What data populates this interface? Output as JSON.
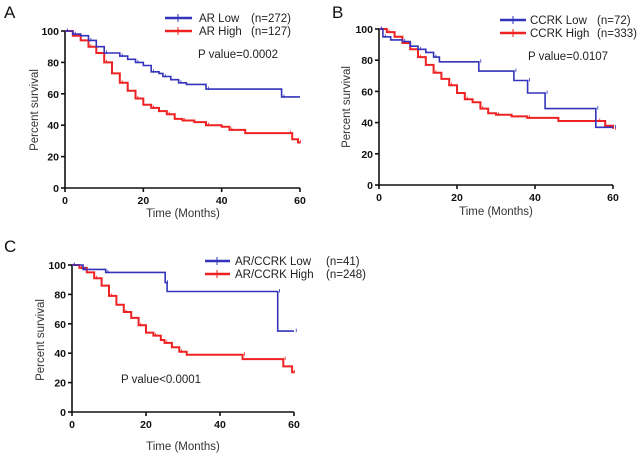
{
  "colors": {
    "low": "#3333bb",
    "high": "#ee2222",
    "axis": "#111111"
  },
  "chart_data": [
    {
      "type": "line",
      "panel": "A",
      "subtype": "kaplan-meier",
      "xlabel": "Time (Months)",
      "ylabel": "Percent  survival",
      "xlim": [
        0,
        60
      ],
      "ylim": [
        0,
        100
      ],
      "xticks": [
        0,
        20,
        40,
        60
      ],
      "yticks": [
        0,
        20,
        40,
        60,
        80,
        100
      ],
      "legend_position": "top-right",
      "annotation": "P value=0.0002",
      "series": [
        {
          "name": "AR Low",
          "n_label": "(n=272)",
          "color": "low",
          "steps": [
            [
              0,
              100
            ],
            [
              2,
              98
            ],
            [
              4,
              97
            ],
            [
              6,
              94
            ],
            [
              8,
              90
            ],
            [
              10,
              86
            ],
            [
              12,
              86
            ],
            [
              14,
              84
            ],
            [
              16,
              82
            ],
            [
              18,
              80
            ],
            [
              20,
              78
            ],
            [
              22,
              74
            ],
            [
              24,
              73
            ],
            [
              25,
              71
            ],
            [
              27,
              69
            ],
            [
              29,
              67
            ],
            [
              31,
              66
            ],
            [
              36,
              63
            ],
            [
              55,
              63
            ],
            [
              55.3,
              58
            ],
            [
              60,
              58
            ]
          ]
        },
        {
          "name": "AR High",
          "n_label": "(n=127)",
          "color": "high",
          "steps": [
            [
              0,
              100
            ],
            [
              2,
              97
            ],
            [
              4,
              94
            ],
            [
              6,
              90
            ],
            [
              8,
              86
            ],
            [
              10,
              80
            ],
            [
              12,
              73
            ],
            [
              14,
              67
            ],
            [
              16,
              62
            ],
            [
              18,
              57
            ],
            [
              20,
              53
            ],
            [
              22,
              51
            ],
            [
              24,
              49
            ],
            [
              26,
              47
            ],
            [
              28,
              44
            ],
            [
              30,
              43
            ],
            [
              33,
              42
            ],
            [
              36,
              40
            ],
            [
              40,
              39
            ],
            [
              42,
              37
            ],
            [
              46,
              35
            ],
            [
              57,
              35
            ],
            [
              58,
              31
            ],
            [
              59.5,
              29
            ],
            [
              60,
              29
            ]
          ]
        }
      ]
    },
    {
      "type": "line",
      "panel": "B",
      "subtype": "kaplan-meier",
      "xlabel": "Time (Months)",
      "ylabel": "Percent  survival",
      "xlim": [
        0,
        60
      ],
      "ylim": [
        0,
        100
      ],
      "xticks": [
        0,
        20,
        40,
        60
      ],
      "yticks": [
        0,
        20,
        40,
        60,
        80,
        100
      ],
      "legend_position": "top-right",
      "annotation": "P value=0.0107",
      "series": [
        {
          "name": "CCRK Low",
          "n_label": "(n=72)",
          "color": "low",
          "steps": [
            [
              0,
              100
            ],
            [
              1,
              95
            ],
            [
              3,
              93
            ],
            [
              6,
              92
            ],
            [
              8,
              89
            ],
            [
              10,
              87
            ],
            [
              12,
              85
            ],
            [
              14,
              82
            ],
            [
              15.5,
              79
            ],
            [
              25.5,
              79
            ],
            [
              25.6,
              73
            ],
            [
              34.5,
              73
            ],
            [
              34.6,
              67
            ],
            [
              38,
              67
            ],
            [
              38.1,
              59
            ],
            [
              42.5,
              59
            ],
            [
              42.6,
              49
            ],
            [
              55.5,
              49
            ],
            [
              55.6,
              37
            ],
            [
              60,
              37
            ]
          ]
        },
        {
          "name": "CCRK High",
          "n_label": "(n=333)",
          "color": "high",
          "steps": [
            [
              0,
              100
            ],
            [
              2,
              98
            ],
            [
              4,
              95
            ],
            [
              6,
              91
            ],
            [
              8,
              87
            ],
            [
              10,
              82
            ],
            [
              12,
              77
            ],
            [
              14,
              72
            ],
            [
              16,
              68
            ],
            [
              18,
              64
            ],
            [
              20,
              59
            ],
            [
              22,
              55
            ],
            [
              24,
              53
            ],
            [
              26,
              49
            ],
            [
              28,
              46
            ],
            [
              30,
              45
            ],
            [
              34,
              44
            ],
            [
              38,
              43
            ],
            [
              46,
              41
            ],
            [
              56,
              41
            ],
            [
              58,
              38
            ],
            [
              60,
              36
            ]
          ]
        }
      ]
    },
    {
      "type": "line",
      "panel": "C",
      "subtype": "kaplan-meier",
      "xlabel": "Time (Months)",
      "ylabel": "Percent  survival",
      "xlim": [
        0,
        60
      ],
      "ylim": [
        0,
        100
      ],
      "xticks": [
        0,
        20,
        40,
        60
      ],
      "yticks": [
        0,
        20,
        40,
        60,
        80,
        100
      ],
      "legend_position": "top-right",
      "annotation": "P value<0.0001",
      "series": [
        {
          "name": "AR/CCRK Low",
          "n_label": "(n=41)",
          "color": "low",
          "steps": [
            [
              0,
              100
            ],
            [
              3,
              97
            ],
            [
              9,
              97
            ],
            [
              9.1,
              95
            ],
            [
              25,
              95
            ],
            [
              25.2,
              88
            ],
            [
              25.7,
              82
            ],
            [
              55.5,
              82
            ],
            [
              55.6,
              55
            ],
            [
              60,
              55
            ]
          ]
        },
        {
          "name": "AR/CCRK High",
          "n_label": "(n=248)",
          "color": "high",
          "steps": [
            [
              0,
              100
            ],
            [
              2,
              98
            ],
            [
              4,
              95
            ],
            [
              6,
              91
            ],
            [
              8,
              86
            ],
            [
              10,
              79
            ],
            [
              12,
              73
            ],
            [
              14,
              68
            ],
            [
              16,
              64
            ],
            [
              18,
              59
            ],
            [
              20,
              54
            ],
            [
              22,
              52
            ],
            [
              24,
              49
            ],
            [
              25,
              47
            ],
            [
              27,
              44
            ],
            [
              29,
              41
            ],
            [
              31,
              39
            ],
            [
              46,
              39
            ],
            [
              46.1,
              36
            ],
            [
              57,
              36
            ],
            [
              57.1,
              31
            ],
            [
              59.5,
              27
            ],
            [
              60,
              27
            ]
          ]
        }
      ]
    }
  ]
}
